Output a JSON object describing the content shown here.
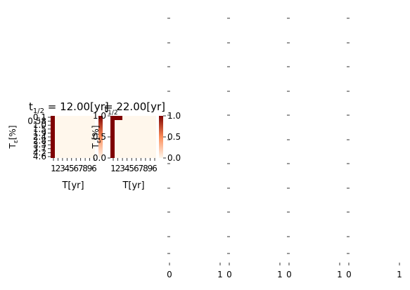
{
  "figure": {
    "description_layout": "matplotlib subplot grid with two heatmaps and four empty axes"
  },
  "chart_data": [
    {
      "type": "heatmap",
      "title_prefix": "t",
      "title_subscript": "1/2",
      "title_value": " = 12.00[yr]",
      "xlabel": "T[yr]",
      "ylabel_main": "T",
      "ylabel_sub": "ε",
      "ylabel_unit": "[%]",
      "yticks": [
        "0.1",
        "0.58",
        "1.0",
        "1.5",
        "1.9",
        "2.4",
        "2.8",
        "3.3",
        "3.7",
        "4.2",
        "4.6"
      ],
      "xticks_text": "1​2​3​4​5​6​7​8​9​6",
      "xtick_labels": [
        "1",
        "2",
        "3",
        "4",
        "5",
        "6",
        "7",
        "8",
        "9",
        "6"
      ],
      "highlight": "first-column",
      "cmap": "OrRd",
      "colorbar_ticks": []
    },
    {
      "type": "heatmap",
      "title_prefix": "t",
      "title_subscript": "1/2",
      "title_value": " = 22.00[yr]",
      "xlabel": "T[yr]",
      "ylabel_main": "T",
      "ylabel_sub": "ε",
      "ylabel_unit": "[%]",
      "yticks": [
        "0.0",
        "0.5",
        "1.0"
      ],
      "xtick_labels": [
        "1",
        "2",
        "3",
        "4",
        "5",
        "6",
        "7",
        "8",
        "9",
        "6"
      ],
      "highlight": "first-column-and-top-row",
      "cmap": "OrRd",
      "colorbar_ticks": [
        "0.0",
        "0.5",
        "1.0"
      ]
    }
  ],
  "empty_axes": {
    "xtick_labels": [
      "0",
      "1"
    ],
    "count": 4
  },
  "colors": {
    "low": "#fff7ec",
    "high": "#7f0000",
    "mid": "#e34a33"
  }
}
